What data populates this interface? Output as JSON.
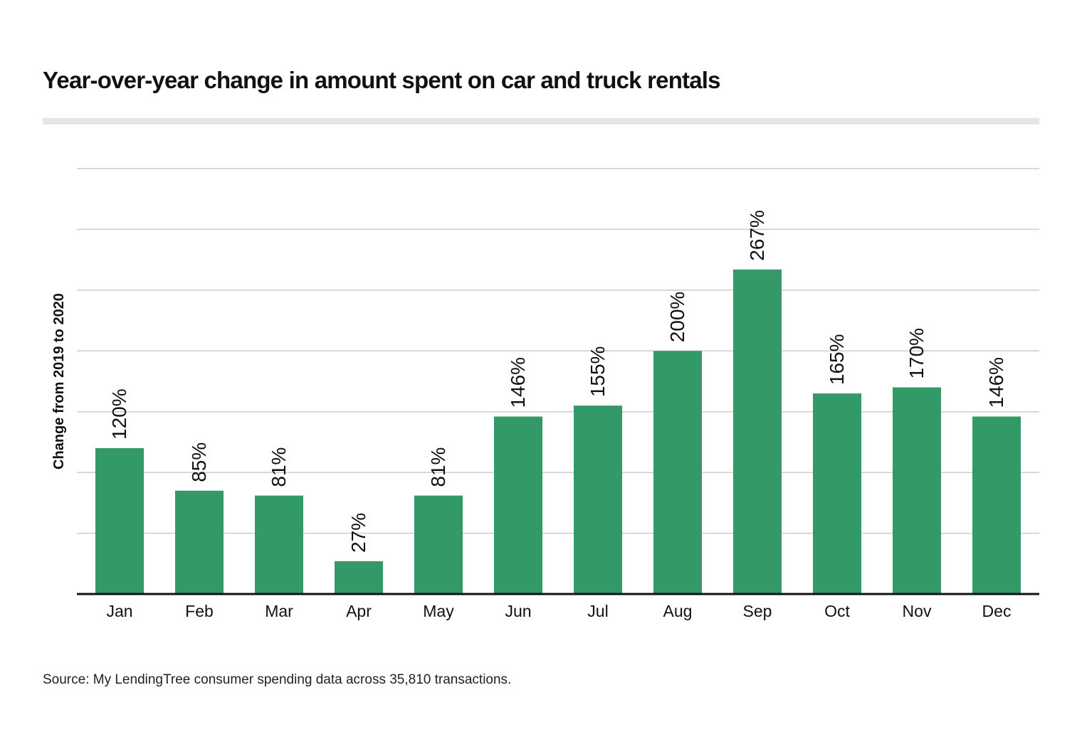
{
  "chart_data": {
    "type": "bar",
    "title": "Year-over-year change in amount spent on car and truck rentals",
    "ylabel": "Change from 2019 to 2020",
    "xlabel": "",
    "categories": [
      "Jan",
      "Feb",
      "Mar",
      "Apr",
      "May",
      "Jun",
      "Jul",
      "Aug",
      "Sep",
      "Oct",
      "Nov",
      "Dec"
    ],
    "values": [
      120,
      85,
      81,
      27,
      81,
      146,
      155,
      200,
      267,
      165,
      170,
      146
    ],
    "data_labels": [
      "120%",
      "85%",
      "81%",
      "27%",
      "81%",
      "146%",
      "155%",
      "200%",
      "267%",
      "165%",
      "170%",
      "146%"
    ],
    "ylim": [
      0,
      350
    ],
    "grid": true,
    "gridlines": [
      50,
      100,
      150,
      200,
      250,
      300,
      350
    ],
    "bar_color": "#339966",
    "source": "Source: My LendingTree consumer spending data across 35,810 transactions."
  }
}
